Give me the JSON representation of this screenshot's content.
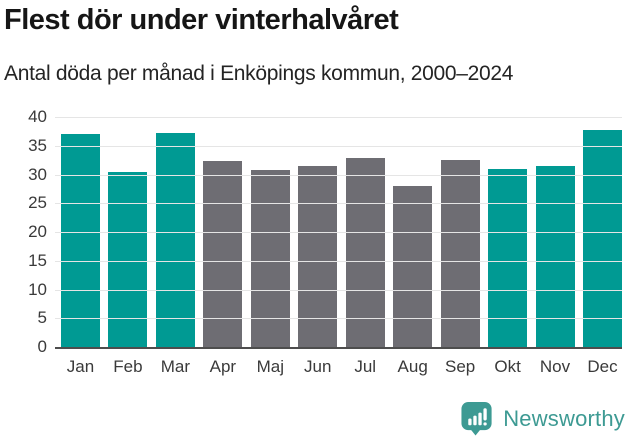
{
  "title": "Flest dör under vinterhalvåret",
  "subtitle": "Antal döda per månad i Enköpings kommun, 2000–2024",
  "chart_data": {
    "type": "bar",
    "title": "Flest dör under vinterhalvåret",
    "subtitle": "Antal döda per månad i Enköpings kommun, 2000–2024",
    "categories": [
      "Jan",
      "Feb",
      "Mar",
      "Apr",
      "Maj",
      "Jun",
      "Jul",
      "Aug",
      "Sep",
      "Okt",
      "Nov",
      "Dec"
    ],
    "values": [
      37.0,
      30.5,
      37.2,
      32.3,
      30.8,
      31.4,
      32.9,
      28.0,
      32.5,
      31.0,
      31.4,
      37.7
    ],
    "highlighted": [
      true,
      true,
      true,
      false,
      false,
      false,
      false,
      false,
      false,
      true,
      true,
      true
    ],
    "xlabel": "",
    "ylabel": "",
    "ylim": [
      0,
      40
    ],
    "yticks": [
      0,
      5,
      10,
      15,
      20,
      25,
      30,
      35,
      40
    ],
    "grid": true,
    "legend": "none",
    "colors": {
      "highlight": "#009a93",
      "default": "#6e6d73",
      "gridline": "#e5e5e5",
      "axis_line": "#4d4d4d",
      "tick_label": "#3a3a3a"
    }
  },
  "footer": {
    "brand": "Newsworthy",
    "brand_color": "#3d9a93",
    "logo_icon": "newsworthy-bar-chart-bubble-icon"
  }
}
